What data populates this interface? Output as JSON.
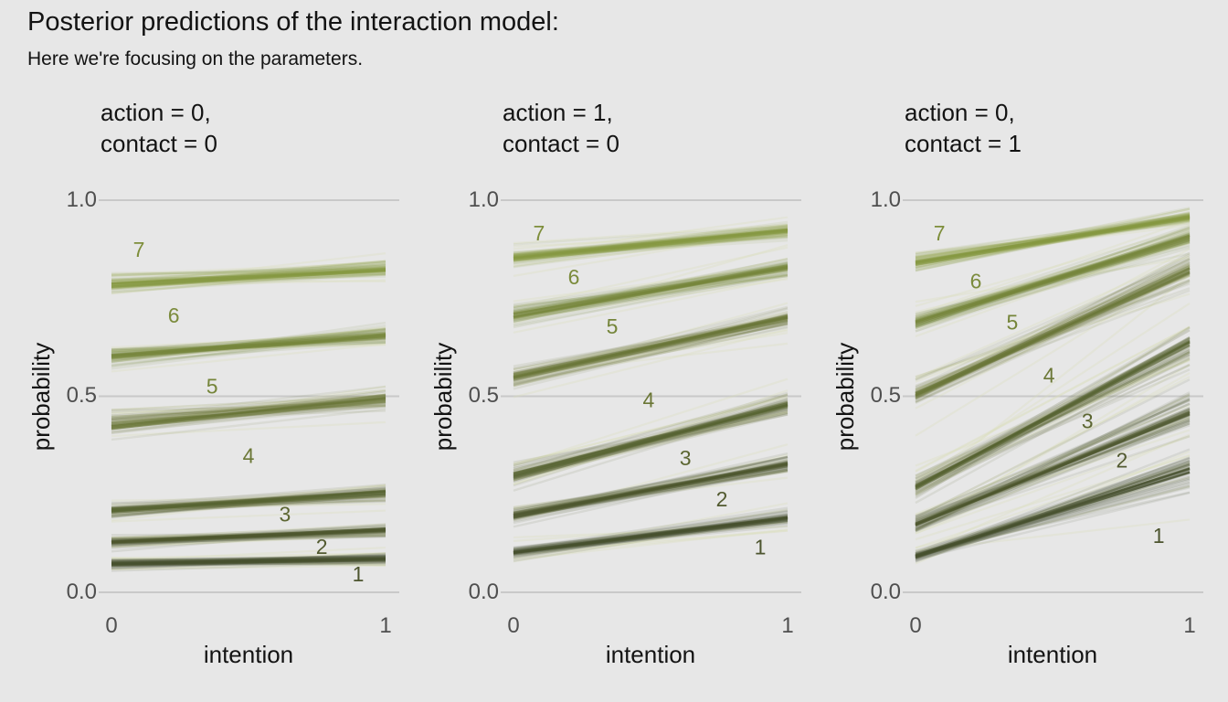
{
  "chart_data": {
    "type": "line",
    "title": "Posterior predictions of the interaction model:",
    "subtitle": "Here we're focusing on the parameters.",
    "xlabel": "intention",
    "ylabel": "probability",
    "x_ticks": [
      "0",
      "1"
    ],
    "y_ticks": [
      "0.0",
      "0.5",
      "1.0"
    ],
    "x_range": [
      0,
      1
    ],
    "y_range": [
      0,
      1
    ],
    "grid_values": [
      0,
      0.5,
      1
    ],
    "panels": [
      {
        "facet_title_line1": "action = 0,",
        "facet_title_line2": "contact = 0",
        "boundaries": [
          {
            "k": 1,
            "start": 0.073,
            "end": 0.085,
            "spread_start": 0.006,
            "spread_end": 0.007
          },
          {
            "k": 2,
            "start": 0.128,
            "end": 0.158,
            "spread_start": 0.007,
            "spread_end": 0.008
          },
          {
            "k": 3,
            "start": 0.208,
            "end": 0.253,
            "spread_start": 0.009,
            "spread_end": 0.011
          },
          {
            "k": 4,
            "start": 0.425,
            "end": 0.493,
            "spread_start": 0.014,
            "spread_end": 0.013
          },
          {
            "k": 5,
            "start": 0.601,
            "end": 0.654,
            "spread_start": 0.014,
            "spread_end": 0.012
          },
          {
            "k": 6,
            "start": 0.786,
            "end": 0.824,
            "spread_start": 0.012,
            "spread_end": 0.011
          }
        ],
        "category_labels": [
          {
            "text": "1",
            "x": 0.9,
            "y": 0.047
          },
          {
            "text": "2",
            "x": 0.767,
            "y": 0.117
          },
          {
            "text": "3",
            "x": 0.633,
            "y": 0.199
          },
          {
            "text": "4",
            "x": 0.5,
            "y": 0.348
          },
          {
            "text": "5",
            "x": 0.367,
            "y": 0.526
          },
          {
            "text": "6",
            "x": 0.227,
            "y": 0.706
          },
          {
            "text": "7",
            "x": 0.1,
            "y": 0.874
          }
        ]
      },
      {
        "facet_title_line1": "action = 1,",
        "facet_title_line2": "contact = 0",
        "boundaries": [
          {
            "k": 1,
            "start": 0.102,
            "end": 0.188,
            "spread_start": 0.007,
            "spread_end": 0.009
          },
          {
            "k": 2,
            "start": 0.196,
            "end": 0.326,
            "spread_start": 0.009,
            "spread_end": 0.011
          },
          {
            "k": 3,
            "start": 0.298,
            "end": 0.478,
            "spread_start": 0.012,
            "spread_end": 0.014
          },
          {
            "k": 4,
            "start": 0.549,
            "end": 0.698,
            "spread_start": 0.013,
            "spread_end": 0.013
          },
          {
            "k": 5,
            "start": 0.706,
            "end": 0.828,
            "spread_start": 0.012,
            "spread_end": 0.012
          },
          {
            "k": 6,
            "start": 0.853,
            "end": 0.922,
            "spread_start": 0.01,
            "spread_end": 0.009
          }
        ],
        "category_labels": [
          {
            "text": "1",
            "x": 0.9,
            "y": 0.115
          },
          {
            "text": "2",
            "x": 0.76,
            "y": 0.238
          },
          {
            "text": "3",
            "x": 0.627,
            "y": 0.343
          },
          {
            "text": "4",
            "x": 0.493,
            "y": 0.491
          },
          {
            "text": "5",
            "x": 0.36,
            "y": 0.678
          },
          {
            "text": "6",
            "x": 0.22,
            "y": 0.804
          },
          {
            "text": "7",
            "x": 0.093,
            "y": 0.916
          }
        ]
      },
      {
        "facet_title_line1": "action = 0,",
        "facet_title_line2": "contact = 1",
        "boundaries": [
          {
            "k": 1,
            "start": 0.092,
            "end": 0.31,
            "spread_start": 0.008,
            "spread_end": 0.024
          },
          {
            "k": 2,
            "start": 0.173,
            "end": 0.458,
            "spread_start": 0.01,
            "spread_end": 0.027
          },
          {
            "k": 3,
            "start": 0.268,
            "end": 0.635,
            "spread_start": 0.014,
            "spread_end": 0.028
          },
          {
            "k": 4,
            "start": 0.503,
            "end": 0.82,
            "spread_start": 0.016,
            "spread_end": 0.02
          },
          {
            "k": 5,
            "start": 0.688,
            "end": 0.905,
            "spread_start": 0.012,
            "spread_end": 0.012
          },
          {
            "k": 6,
            "start": 0.84,
            "end": 0.957,
            "spread_start": 0.01,
            "spread_end": 0.008
          }
        ],
        "category_labels": [
          {
            "text": "1",
            "x": 0.887,
            "y": 0.145
          },
          {
            "text": "2",
            "x": 0.753,
            "y": 0.337
          },
          {
            "text": "3",
            "x": 0.627,
            "y": 0.437
          },
          {
            "text": "4",
            "x": 0.487,
            "y": 0.554
          },
          {
            "text": "5",
            "x": 0.353,
            "y": 0.689
          },
          {
            "text": "6",
            "x": 0.22,
            "y": 0.794
          },
          {
            "text": "7",
            "x": 0.087,
            "y": 0.916
          }
        ]
      }
    ]
  },
  "style": {
    "background": "#e7e7e7",
    "gridline_color": "#c9c9c9",
    "tick_text_color": "#4f4f4f",
    "text_color": "#131313",
    "halo_color": "#d9dfb8",
    "boundary_colors": [
      "#49502e",
      "#4f572f",
      "#586232",
      "#6a7637",
      "#77873b",
      "#879940"
    ],
    "category_label_colors": [
      "#4d552f",
      "#525a30",
      "#5c6632",
      "#6b7736",
      "#75853a",
      "#7b8b3c",
      "#7e8e3b"
    ]
  }
}
